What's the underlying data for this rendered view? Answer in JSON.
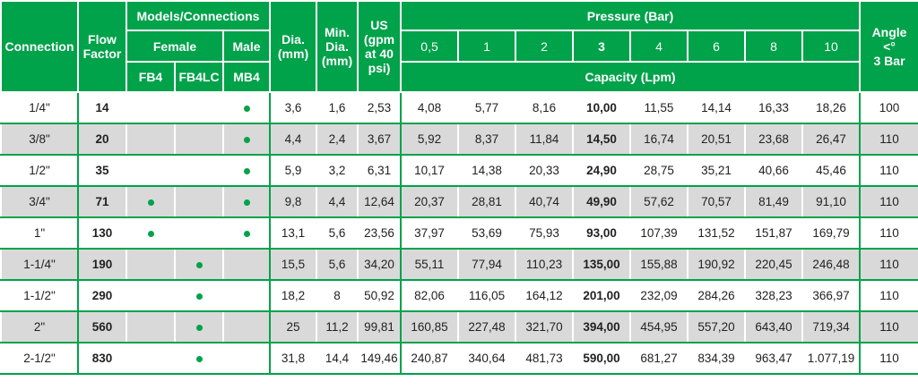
{
  "header": {
    "connection": "Connection",
    "flow_factor_1": "Flow",
    "flow_factor_2": "Factor",
    "models_connections": "Models/Connections",
    "female": "Female",
    "male": "Male",
    "fb4": "FB4",
    "fb4lc": "FB4LC",
    "mb4": "MB4",
    "dia_1": "Dia.",
    "dia_2": "(mm)",
    "min_dia_1": "Min.",
    "min_dia_2": "Dia.",
    "min_dia_3": "(mm)",
    "us_1": "US",
    "us_2": "(gpm",
    "us_3": "at 40",
    "us_4": "psi)",
    "pressure": "Pressure (Bar)",
    "pressures": [
      "0,5",
      "1",
      "2",
      "3",
      "4",
      "6",
      "8",
      "10"
    ],
    "capacity": "Capacity (Lpm)",
    "angle_1": "Angle",
    "angle_2": "<°",
    "angle_3": "3 Bar"
  },
  "rows": [
    {
      "connection": "1/4\"",
      "flow": "14",
      "fb4": false,
      "fb4lc": false,
      "mb4": true,
      "dia": "3,6",
      "min_dia": "1,6",
      "us": "2,53",
      "cap": [
        "4,08",
        "5,77",
        "8,16",
        "10,00",
        "11,55",
        "14,14",
        "16,33",
        "18,26"
      ],
      "angle": "100"
    },
    {
      "connection": "3/8\"",
      "flow": "20",
      "fb4": false,
      "fb4lc": false,
      "mb4": true,
      "dia": "4,4",
      "min_dia": "2,4",
      "us": "3,67",
      "cap": [
        "5,92",
        "8,37",
        "11,84",
        "14,50",
        "16,74",
        "20,51",
        "23,68",
        "26,47"
      ],
      "angle": "110"
    },
    {
      "connection": "1/2\"",
      "flow": "35",
      "fb4": false,
      "fb4lc": false,
      "mb4": true,
      "dia": "5,9",
      "min_dia": "3,2",
      "us": "6,31",
      "cap": [
        "10,17",
        "14,38",
        "20,33",
        "24,90",
        "28,75",
        "35,21",
        "40,66",
        "45,46"
      ],
      "angle": "110"
    },
    {
      "connection": "3/4\"",
      "flow": "71",
      "fb4": true,
      "fb4lc": false,
      "mb4": true,
      "dia": "9,8",
      "min_dia": "4,4",
      "us": "12,64",
      "cap": [
        "20,37",
        "28,81",
        "40,74",
        "49,90",
        "57,62",
        "70,57",
        "81,49",
        "91,10"
      ],
      "angle": "110"
    },
    {
      "connection": "1\"",
      "flow": "130",
      "fb4": true,
      "fb4lc": false,
      "mb4": true,
      "dia": "13,1",
      "min_dia": "5,6",
      "us": "23,56",
      "cap": [
        "37,97",
        "53,69",
        "75,93",
        "93,00",
        "107,39",
        "131,52",
        "151,87",
        "169,79"
      ],
      "angle": "110"
    },
    {
      "connection": "1-1/4\"",
      "flow": "190",
      "fb4": false,
      "fb4lc": true,
      "mb4": false,
      "dia": "15,5",
      "min_dia": "5,6",
      "us": "34,20",
      "cap": [
        "55,11",
        "77,94",
        "110,23",
        "135,00",
        "155,88",
        "190,92",
        "220,45",
        "246,48"
      ],
      "angle": "110"
    },
    {
      "connection": "1-1/2\"",
      "flow": "290",
      "fb4": false,
      "fb4lc": true,
      "mb4": false,
      "dia": "18,2",
      "min_dia": "8",
      "us": "50,92",
      "cap": [
        "82,06",
        "116,05",
        "164,12",
        "201,00",
        "232,09",
        "284,26",
        "328,23",
        "366,97"
      ],
      "angle": "110"
    },
    {
      "connection": "2\"",
      "flow": "560",
      "fb4": false,
      "fb4lc": true,
      "mb4": false,
      "dia": "25",
      "min_dia": "11,2",
      "us": "99,81",
      "cap": [
        "160,85",
        "227,48",
        "321,70",
        "394,00",
        "454,95",
        "557,20",
        "643,40",
        "719,34"
      ],
      "angle": "110"
    },
    {
      "connection": "2-1/2\"",
      "flow": "830",
      "fb4": false,
      "fb4lc": true,
      "mb4": false,
      "dia": "31,8",
      "min_dia": "14,4",
      "us": "149,46",
      "cap": [
        "240,87",
        "340,64",
        "481,73",
        "590,00",
        "681,27",
        "834,39",
        "963,47",
        "1.077,19"
      ],
      "angle": "110"
    }
  ],
  "colors": {
    "header_green": "#00a24a",
    "row_grey": "#d9d9d9",
    "dot_green": "#00a24a"
  }
}
